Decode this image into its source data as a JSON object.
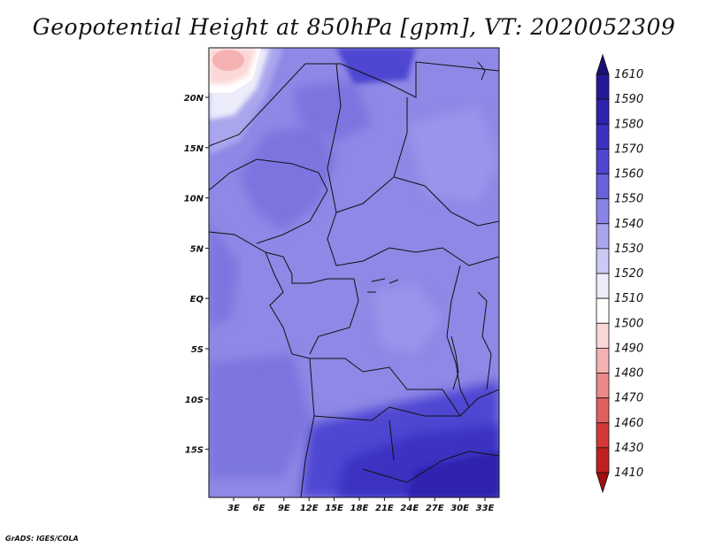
{
  "title": "Geopotential Height at 850hPa [gpm], VT: 2020052309",
  "footer": "GrADS: IGES/COLA",
  "map": {
    "lat_labels": [
      "20N",
      "15N",
      "10N",
      "5N",
      "EQ",
      "5S",
      "10S",
      "15S"
    ],
    "lon_labels": [
      "3E",
      "6E",
      "9E",
      "12E",
      "15E",
      "18E",
      "21E",
      "24E",
      "27E",
      "30E",
      "33E"
    ]
  },
  "colorbar": {
    "labels": [
      "1610",
      "1590",
      "1580",
      "1570",
      "1560",
      "1550",
      "1540",
      "1530",
      "1520",
      "1510",
      "1500",
      "1490",
      "1480",
      "1470",
      "1460",
      "1430",
      "1410"
    ],
    "colors": [
      "#1a0f78",
      "#241896",
      "#2e22ae",
      "#3a30c2",
      "#4e46d2",
      "#6a62dc",
      "#8a84e6",
      "#aaa6ee",
      "#cccaf4",
      "#ececfb",
      "#ffffff",
      "#fbd8d8",
      "#f5b2b2",
      "#ec8a8a",
      "#e06060",
      "#d43838",
      "#c02020",
      "#a00e0e"
    ]
  },
  "colors": {
    "field_base": "#8e88e6",
    "field_deep": "#3a30c2",
    "field_high": "#f5b2b2",
    "border": "#111111"
  }
}
